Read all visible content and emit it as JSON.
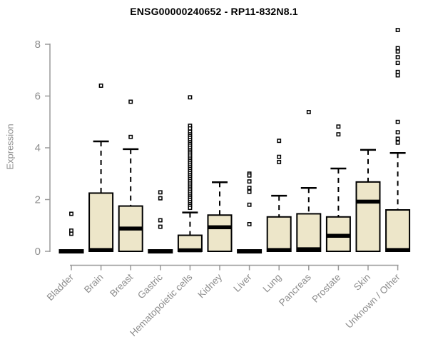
{
  "title": "ENSG00000240652 - RP11-832N8.1",
  "colors": {
    "box_fill": "#EDE6C9",
    "box_stroke": "#000000",
    "median": "#000000",
    "axis_line": "#9a9a9a",
    "axis_text": "#8d8d8d",
    "title_text": "#000000",
    "outlier_stroke": "#000000",
    "background": "#ffffff"
  },
  "marker": "open-square-marker",
  "chart_data": {
    "type": "boxplot",
    "title": "ENSG00000240652 - RP11-832N8.1",
    "xlabel": "",
    "ylabel": "Expression",
    "ylim": [
      0,
      8.6
    ],
    "yticks": [
      0,
      2,
      4,
      6,
      8
    ],
    "grid": false,
    "legend": "none",
    "categories": [
      "Bladder",
      "Brain",
      "Breast",
      "Gastric",
      "Hematopoietic cells",
      "Kidney",
      "Liver",
      "Lung",
      "Pancreas",
      "Prostate",
      "Skin",
      "Unknown / Other"
    ],
    "series": [
      {
        "category": "Bladder",
        "q1": 0,
        "median": 0,
        "q3": 0,
        "whisker_low": 0,
        "whisker_high": 0,
        "outliers": [
          1.45,
          0.8,
          0.68
        ]
      },
      {
        "category": "Brain",
        "q1": 0,
        "median": 0.05,
        "q3": 2.25,
        "whisker_low": 0,
        "whisker_high": 4.25,
        "outliers": [
          6.4
        ]
      },
      {
        "category": "Breast",
        "q1": 0,
        "median": 0.88,
        "q3": 1.75,
        "whisker_low": 0,
        "whisker_high": 3.95,
        "outliers": [
          5.78,
          4.42
        ]
      },
      {
        "category": "Gastric",
        "q1": 0,
        "median": 0,
        "q3": 0,
        "whisker_low": 0,
        "whisker_high": 0,
        "outliers": [
          2.28,
          2.05,
          1.2,
          0.95
        ]
      },
      {
        "category": "Hematopoietic cells",
        "q1": 0,
        "median": 0.04,
        "q3": 0.62,
        "whisker_low": 0,
        "whisker_high": 1.5,
        "outliers": [
          5.95,
          4.85,
          4.75,
          4.62,
          4.52,
          4.45,
          4.38,
          4.3,
          4.22,
          4.15,
          4.08,
          4.0,
          3.92,
          3.85,
          3.78,
          3.7,
          3.62,
          3.55,
          3.48,
          3.4,
          3.32,
          3.25,
          3.18,
          3.1,
          3.02,
          2.95,
          2.88,
          2.8,
          2.72,
          2.65,
          2.58,
          2.5,
          2.42,
          2.35,
          2.28,
          2.2,
          2.12,
          2.05,
          1.98,
          1.9,
          1.82,
          1.75,
          1.68
        ]
      },
      {
        "category": "Kidney",
        "q1": 0,
        "median": 0.93,
        "q3": 1.4,
        "whisker_low": 0,
        "whisker_high": 2.67,
        "outliers": []
      },
      {
        "category": "Liver",
        "q1": 0,
        "median": 0,
        "q3": 0,
        "whisker_low": 0,
        "whisker_high": 0,
        "outliers": [
          3.0,
          2.93,
          2.7,
          2.45,
          2.3,
          1.8,
          1.05
        ]
      },
      {
        "category": "Lung",
        "q1": 0,
        "median": 0.05,
        "q3": 1.33,
        "whisker_low": 0,
        "whisker_high": 2.15,
        "outliers": [
          4.27,
          3.65,
          3.45
        ]
      },
      {
        "category": "Pancreas",
        "q1": 0,
        "median": 0.08,
        "q3": 1.45,
        "whisker_low": 0,
        "whisker_high": 2.45,
        "outliers": [
          5.38
        ]
      },
      {
        "category": "Prostate",
        "q1": 0,
        "median": 0.6,
        "q3": 1.33,
        "whisker_low": 0,
        "whisker_high": 3.2,
        "outliers": [
          4.82,
          4.52
        ]
      },
      {
        "category": "Skin",
        "q1": 0,
        "median": 1.92,
        "q3": 2.68,
        "whisker_low": 0,
        "whisker_high": 3.92,
        "outliers": []
      },
      {
        "category": "Unknown / Other",
        "q1": 0,
        "median": 0.05,
        "q3": 1.6,
        "whisker_low": 0,
        "whisker_high": 3.8,
        "outliers": [
          8.55,
          7.85,
          7.72,
          7.5,
          7.28,
          6.93,
          6.8,
          5.0,
          4.6,
          4.35,
          4.2
        ]
      }
    ]
  }
}
